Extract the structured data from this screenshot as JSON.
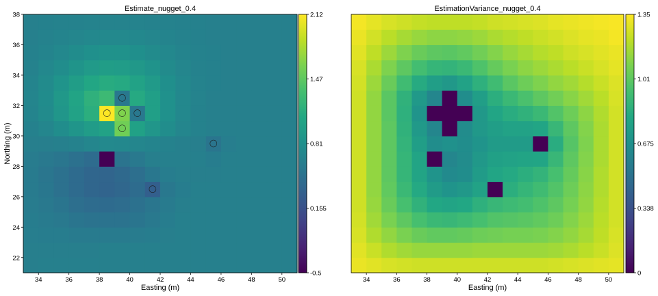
{
  "chart_data": [
    {
      "type": "heatmap",
      "title": "Estimate_nugget_0.4",
      "xlabel": "Easting (m)",
      "ylabel": "Northing (m)",
      "xlim": [
        33,
        51
      ],
      "ylim": [
        21,
        38
      ],
      "xticks": [
        34,
        36,
        38,
        40,
        42,
        44,
        46,
        48,
        50
      ],
      "yticks": [
        22,
        24,
        26,
        28,
        30,
        32,
        34,
        36,
        38
      ],
      "x0": 33,
      "y0": 21,
      "cell": 1,
      "colormap": "viridis",
      "vmin": -0.5,
      "vmax": 2.12,
      "colorbar_ticks": [
        "2.12",
        "1.47",
        "0.81",
        "0.155",
        "-0.5"
      ],
      "grid": false,
      "values": [
        [
          0.62,
          0.63,
          0.63,
          0.64,
          0.64,
          0.64,
          0.64,
          0.64,
          0.64,
          0.64,
          0.64,
          0.64,
          0.64,
          0.64,
          0.64,
          0.64,
          0.64,
          0.64
        ],
        [
          0.62,
          0.62,
          0.62,
          0.62,
          0.62,
          0.63,
          0.63,
          0.63,
          0.63,
          0.63,
          0.64,
          0.64,
          0.64,
          0.64,
          0.64,
          0.64,
          0.64,
          0.64
        ],
        [
          0.61,
          0.6,
          0.6,
          0.58,
          0.58,
          0.58,
          0.58,
          0.59,
          0.6,
          0.62,
          0.63,
          0.64,
          0.64,
          0.64,
          0.64,
          0.64,
          0.64,
          0.64
        ],
        [
          0.6,
          0.58,
          0.56,
          0.52,
          0.5,
          0.5,
          0.5,
          0.52,
          0.56,
          0.6,
          0.63,
          0.64,
          0.64,
          0.64,
          0.64,
          0.64,
          0.64,
          0.64
        ],
        [
          0.59,
          0.56,
          0.52,
          0.46,
          0.43,
          0.42,
          0.44,
          0.48,
          0.53,
          0.58,
          0.62,
          0.64,
          0.64,
          0.64,
          0.64,
          0.64,
          0.64,
          0.64
        ],
        [
          0.58,
          0.54,
          0.48,
          0.42,
          0.37,
          0.35,
          0.38,
          0.43,
          0.3,
          0.55,
          0.6,
          0.63,
          0.64,
          0.64,
          0.64,
          0.64,
          0.64,
          0.64
        ],
        [
          0.58,
          0.53,
          0.48,
          0.42,
          0.37,
          0.36,
          0.4,
          0.46,
          0.54,
          0.6,
          0.62,
          0.62,
          0.62,
          0.63,
          0.64,
          0.64,
          0.64,
          0.64
        ],
        [
          0.59,
          0.56,
          0.53,
          0.48,
          0.43,
          -0.5,
          0.51,
          0.56,
          0.62,
          0.64,
          0.64,
          0.63,
          0.6,
          0.63,
          0.64,
          0.64,
          0.64,
          0.64
        ],
        [
          0.62,
          0.62,
          0.63,
          0.66,
          0.7,
          0.73,
          0.72,
          0.7,
          0.68,
          0.66,
          0.64,
          0.62,
          0.52,
          0.61,
          0.64,
          0.64,
          0.64,
          0.64
        ],
        [
          0.65,
          0.7,
          0.78,
          0.87,
          0.95,
          1.02,
          1.55,
          1.0,
          0.88,
          0.78,
          0.7,
          0.66,
          0.64,
          0.64,
          0.64,
          0.64,
          0.64,
          0.64
        ],
        [
          0.68,
          0.76,
          0.88,
          1.02,
          1.15,
          2.12,
          1.62,
          0.55,
          0.98,
          0.82,
          0.72,
          0.66,
          0.64,
          0.64,
          0.64,
          0.64,
          0.64,
          0.64
        ],
        [
          0.69,
          0.77,
          0.9,
          1.04,
          1.18,
          1.28,
          0.55,
          1.1,
          0.98,
          0.82,
          0.72,
          0.67,
          0.64,
          0.64,
          0.64,
          0.64,
          0.64,
          0.64
        ],
        [
          0.68,
          0.75,
          0.85,
          0.96,
          1.06,
          1.12,
          1.1,
          1.02,
          0.92,
          0.8,
          0.72,
          0.67,
          0.65,
          0.64,
          0.64,
          0.64,
          0.64,
          0.64
        ],
        [
          0.66,
          0.72,
          0.78,
          0.86,
          0.92,
          0.96,
          0.95,
          0.9,
          0.84,
          0.76,
          0.7,
          0.66,
          0.65,
          0.64,
          0.64,
          0.64,
          0.64,
          0.64
        ],
        [
          0.65,
          0.68,
          0.72,
          0.77,
          0.81,
          0.83,
          0.83,
          0.8,
          0.76,
          0.72,
          0.68,
          0.66,
          0.65,
          0.64,
          0.64,
          0.64,
          0.64,
          0.64
        ],
        [
          0.64,
          0.66,
          0.68,
          0.7,
          0.72,
          0.73,
          0.73,
          0.72,
          0.7,
          0.68,
          0.66,
          0.65,
          0.64,
          0.64,
          0.64,
          0.64,
          0.64,
          0.64
        ],
        [
          0.64,
          0.65,
          0.66,
          0.66,
          0.67,
          0.67,
          0.67,
          0.67,
          0.66,
          0.66,
          0.65,
          0.65,
          0.64,
          0.64,
          0.64,
          0.64,
          0.64,
          0.64
        ]
      ],
      "samples": [
        {
          "x": 38.5,
          "y": 31.5,
          "value": 2.12
        },
        {
          "x": 39.5,
          "y": 32.5,
          "value": 0.55
        },
        {
          "x": 39.5,
          "y": 31.5,
          "value": 1.62
        },
        {
          "x": 40.5,
          "y": 31.5,
          "value": 0.55
        },
        {
          "x": 39.5,
          "y": 30.5,
          "value": 1.55
        },
        {
          "x": 45.5,
          "y": 29.5,
          "value": 0.52
        },
        {
          "x": 41.5,
          "y": 26.5,
          "value": 0.3
        }
      ]
    },
    {
      "type": "heatmap",
      "title": "EstimationVariance_nugget_0.4",
      "xlabel": "Easting (m)",
      "ylabel": "",
      "xlim": [
        33,
        51
      ],
      "ylim": [
        21,
        38
      ],
      "xticks": [
        34,
        36,
        38,
        40,
        42,
        44,
        46,
        48,
        50
      ],
      "yticks": [],
      "x0": 33,
      "y0": 21,
      "cell": 1,
      "colormap": "viridis",
      "vmin": 0,
      "vmax": 1.35,
      "colorbar_ticks": [
        "1.35",
        "1.01",
        "0.675",
        "0.338",
        "0"
      ],
      "grid": false,
      "values": [
        [
          1.31,
          1.29,
          1.27,
          1.26,
          1.25,
          1.25,
          1.25,
          1.25,
          1.25,
          1.25,
          1.25,
          1.25,
          1.25,
          1.26,
          1.27,
          1.28,
          1.29,
          1.3
        ],
        [
          1.29,
          1.24,
          1.19,
          1.16,
          1.14,
          1.14,
          1.14,
          1.14,
          1.15,
          1.15,
          1.15,
          1.15,
          1.15,
          1.16,
          1.18,
          1.21,
          1.24,
          1.28
        ],
        [
          1.27,
          1.19,
          1.13,
          1.08,
          1.04,
          1.02,
          1.02,
          1.03,
          1.05,
          1.06,
          1.07,
          1.07,
          1.08,
          1.1,
          1.13,
          1.17,
          1.22,
          1.27
        ],
        [
          1.26,
          1.16,
          1.08,
          1.01,
          0.95,
          0.91,
          0.9,
          0.92,
          0.95,
          0.98,
          0.99,
          1.0,
          1.02,
          1.05,
          1.1,
          1.15,
          1.21,
          1.26
        ],
        [
          1.25,
          1.14,
          1.04,
          0.95,
          0.87,
          0.81,
          0.79,
          0.81,
          0.86,
          0.9,
          0.92,
          0.94,
          0.97,
          1.01,
          1.07,
          1.13,
          1.2,
          1.26
        ],
        [
          1.25,
          1.13,
          1.02,
          0.91,
          0.82,
          0.74,
          0.7,
          0.72,
          0.78,
          0.0,
          0.85,
          0.89,
          0.93,
          0.98,
          1.05,
          1.12,
          1.19,
          1.26
        ],
        [
          1.25,
          1.13,
          1.01,
          0.89,
          0.79,
          0.7,
          0.64,
          0.66,
          0.74,
          0.8,
          0.82,
          0.85,
          0.88,
          0.95,
          1.03,
          1.11,
          1.19,
          1.26
        ],
        [
          1.25,
          1.13,
          1.01,
          0.89,
          0.79,
          0.0,
          0.62,
          0.65,
          0.72,
          0.77,
          0.78,
          0.79,
          0.8,
          0.9,
          1.01,
          1.1,
          1.18,
          1.26
        ],
        [
          1.25,
          1.13,
          1.01,
          0.88,
          0.76,
          0.66,
          0.68,
          0.66,
          0.7,
          0.74,
          0.74,
          0.74,
          0.0,
          0.84,
          0.99,
          1.09,
          1.18,
          1.26
        ],
        [
          1.25,
          1.13,
          1.01,
          0.87,
          0.73,
          0.62,
          0.0,
          0.65,
          0.72,
          0.76,
          0.78,
          0.78,
          0.8,
          0.9,
          1.01,
          1.1,
          1.18,
          1.26
        ],
        [
          1.25,
          1.13,
          1.0,
          0.86,
          0.7,
          0.0,
          0.0,
          0.0,
          0.72,
          0.8,
          0.84,
          0.87,
          0.91,
          0.98,
          1.05,
          1.12,
          1.19,
          1.26
        ],
        [
          1.25,
          1.13,
          1.0,
          0.87,
          0.73,
          0.62,
          0.0,
          0.66,
          0.76,
          0.85,
          0.91,
          0.96,
          1.01,
          1.06,
          1.11,
          1.16,
          1.21,
          1.27
        ],
        [
          1.26,
          1.15,
          1.04,
          0.93,
          0.83,
          0.76,
          0.72,
          0.78,
          0.86,
          0.93,
          1.0,
          1.05,
          1.09,
          1.13,
          1.16,
          1.2,
          1.24,
          1.28
        ],
        [
          1.27,
          1.18,
          1.09,
          1.01,
          0.94,
          0.89,
          0.88,
          0.91,
          0.97,
          1.03,
          1.08,
          1.12,
          1.15,
          1.18,
          1.21,
          1.24,
          1.27,
          1.3
        ],
        [
          1.29,
          1.22,
          1.15,
          1.09,
          1.04,
          1.01,
          1.0,
          1.02,
          1.06,
          1.1,
          1.14,
          1.17,
          1.2,
          1.22,
          1.25,
          1.27,
          1.29,
          1.31
        ],
        [
          1.31,
          1.26,
          1.21,
          1.17,
          1.14,
          1.12,
          1.12,
          1.13,
          1.15,
          1.18,
          1.2,
          1.22,
          1.24,
          1.26,
          1.28,
          1.3,
          1.31,
          1.33
        ],
        [
          1.33,
          1.3,
          1.27,
          1.25,
          1.23,
          1.22,
          1.22,
          1.22,
          1.23,
          1.25,
          1.26,
          1.27,
          1.28,
          1.3,
          1.31,
          1.32,
          1.33,
          1.34
        ]
      ],
      "samples": []
    }
  ]
}
